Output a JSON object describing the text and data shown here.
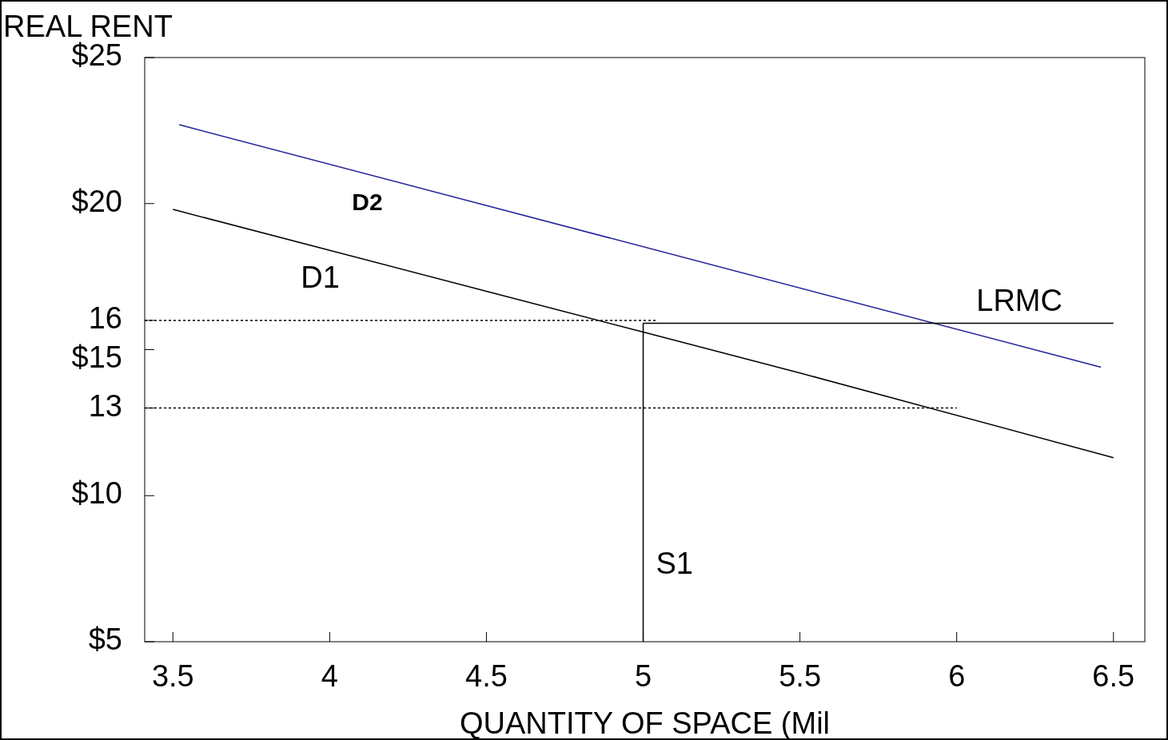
{
  "chart_data": {
    "type": "line",
    "ylabel": "REAL RENT",
    "xlabel": "QUANTITY OF SPACE (Mil",
    "xlim": [
      3.41,
      6.6
    ],
    "xticks": [
      3.5,
      4,
      4.5,
      5,
      5.5,
      6,
      6.5
    ],
    "ylim": [
      5,
      25
    ],
    "yticks": [
      {
        "value": 5,
        "label": "$5"
      },
      {
        "value": 10,
        "label": "$10"
      },
      {
        "value": 13,
        "label": "13"
      },
      {
        "value": 15,
        "label": "$15"
      },
      {
        "value": 16,
        "label": "16"
      },
      {
        "value": 20,
        "label": "$20"
      },
      {
        "value": 25,
        "label": "$25"
      }
    ],
    "series": [
      {
        "name": "D1",
        "color": "#000000",
        "x": [
          3.5,
          4.5,
          5,
          5.5,
          6.5
        ],
        "values": [
          19.8,
          17.0,
          15.6,
          14.2,
          11.3
        ]
      },
      {
        "name": "D2",
        "color": "#1f1f99",
        "x": [
          3.52,
          6.46
        ],
        "values": [
          22.7,
          14.4
        ]
      },
      {
        "name": "LRMC",
        "color": "#000000",
        "x": [
          5,
          6.5
        ],
        "values": [
          15.9,
          15.9
        ]
      },
      {
        "name": "S1",
        "color": "#000000",
        "x": [
          5,
          5
        ],
        "values": [
          5,
          15.9
        ]
      },
      {
        "color": "#000000",
        "line_style": "dotted",
        "x": [
          3.41,
          5.04
        ],
        "values": [
          16,
          16
        ]
      },
      {
        "color": "#000000",
        "line_style": "dotted",
        "x": [
          3.41,
          6.0
        ],
        "values": [
          13,
          13
        ]
      }
    ]
  }
}
